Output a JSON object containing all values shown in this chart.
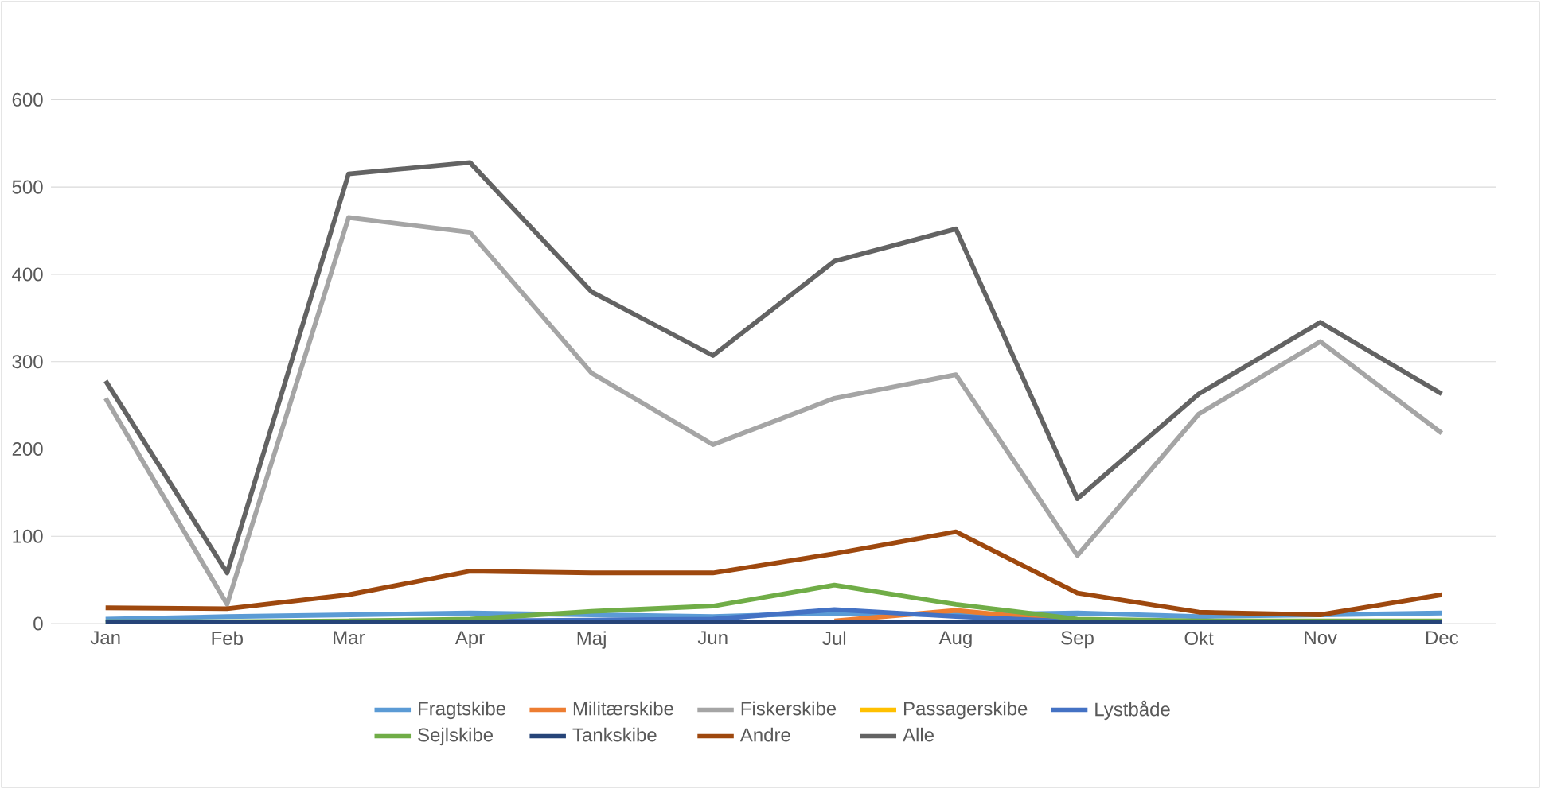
{
  "chart_data": {
    "type": "line",
    "categories": [
      "Jan",
      "Feb",
      "Mar",
      "Apr",
      "Maj",
      "Jun",
      "Jul",
      "Aug",
      "Sep",
      "Okt",
      "Nov",
      "Dec"
    ],
    "ylim": [
      0,
      600
    ],
    "yticks": [
      0,
      100,
      200,
      300,
      400,
      500,
      600
    ],
    "grid": "y",
    "legend": "bottom",
    "marker": "none",
    "line_style": "solid",
    "series": [
      {
        "name": "Fragtskibe",
        "color": "#5b9bd5",
        "values": [
          5,
          8,
          10,
          12,
          10,
          8,
          12,
          10,
          12,
          8,
          10,
          12
        ]
      },
      {
        "name": "Militærskibe",
        "color": "#ed7d31",
        "values": [
          null,
          null,
          null,
          null,
          null,
          null,
          3,
          15,
          2,
          null,
          null,
          null
        ]
      },
      {
        "name": "Fiskerskibe",
        "color": "#a5a5a5",
        "values": [
          258,
          22,
          465,
          448,
          287,
          205,
          258,
          285,
          78,
          240,
          323,
          218
        ]
      },
      {
        "name": "Passagerskibe",
        "color": "#ffc000",
        "values": [
          null,
          null,
          null,
          null,
          null,
          null,
          null,
          null,
          null,
          null,
          null,
          null
        ]
      },
      {
        "name": "Lystbåde",
        "color": "#4472c4",
        "values": [
          null,
          null,
          3,
          3,
          4,
          5,
          16,
          8,
          2,
          null,
          null,
          null
        ]
      },
      {
        "name": "Sejlskibe",
        "color": "#70ad47",
        "values": [
          2,
          2,
          3,
          5,
          14,
          20,
          44,
          22,
          5,
          3,
          3,
          3
        ]
      },
      {
        "name": "Tankskibe",
        "color": "#264478",
        "values": [
          1,
          1,
          1,
          1,
          1,
          1,
          1,
          1,
          1,
          1,
          1,
          1
        ]
      },
      {
        "name": "Andre",
        "color": "#9e480e",
        "values": [
          18,
          17,
          33,
          60,
          58,
          58,
          80,
          105,
          35,
          13,
          10,
          33
        ]
      },
      {
        "name": "Alle",
        "color": "#636363",
        "values": [
          278,
          58,
          515,
          528,
          380,
          307,
          415,
          452,
          143,
          263,
          345,
          263
        ]
      }
    ]
  }
}
